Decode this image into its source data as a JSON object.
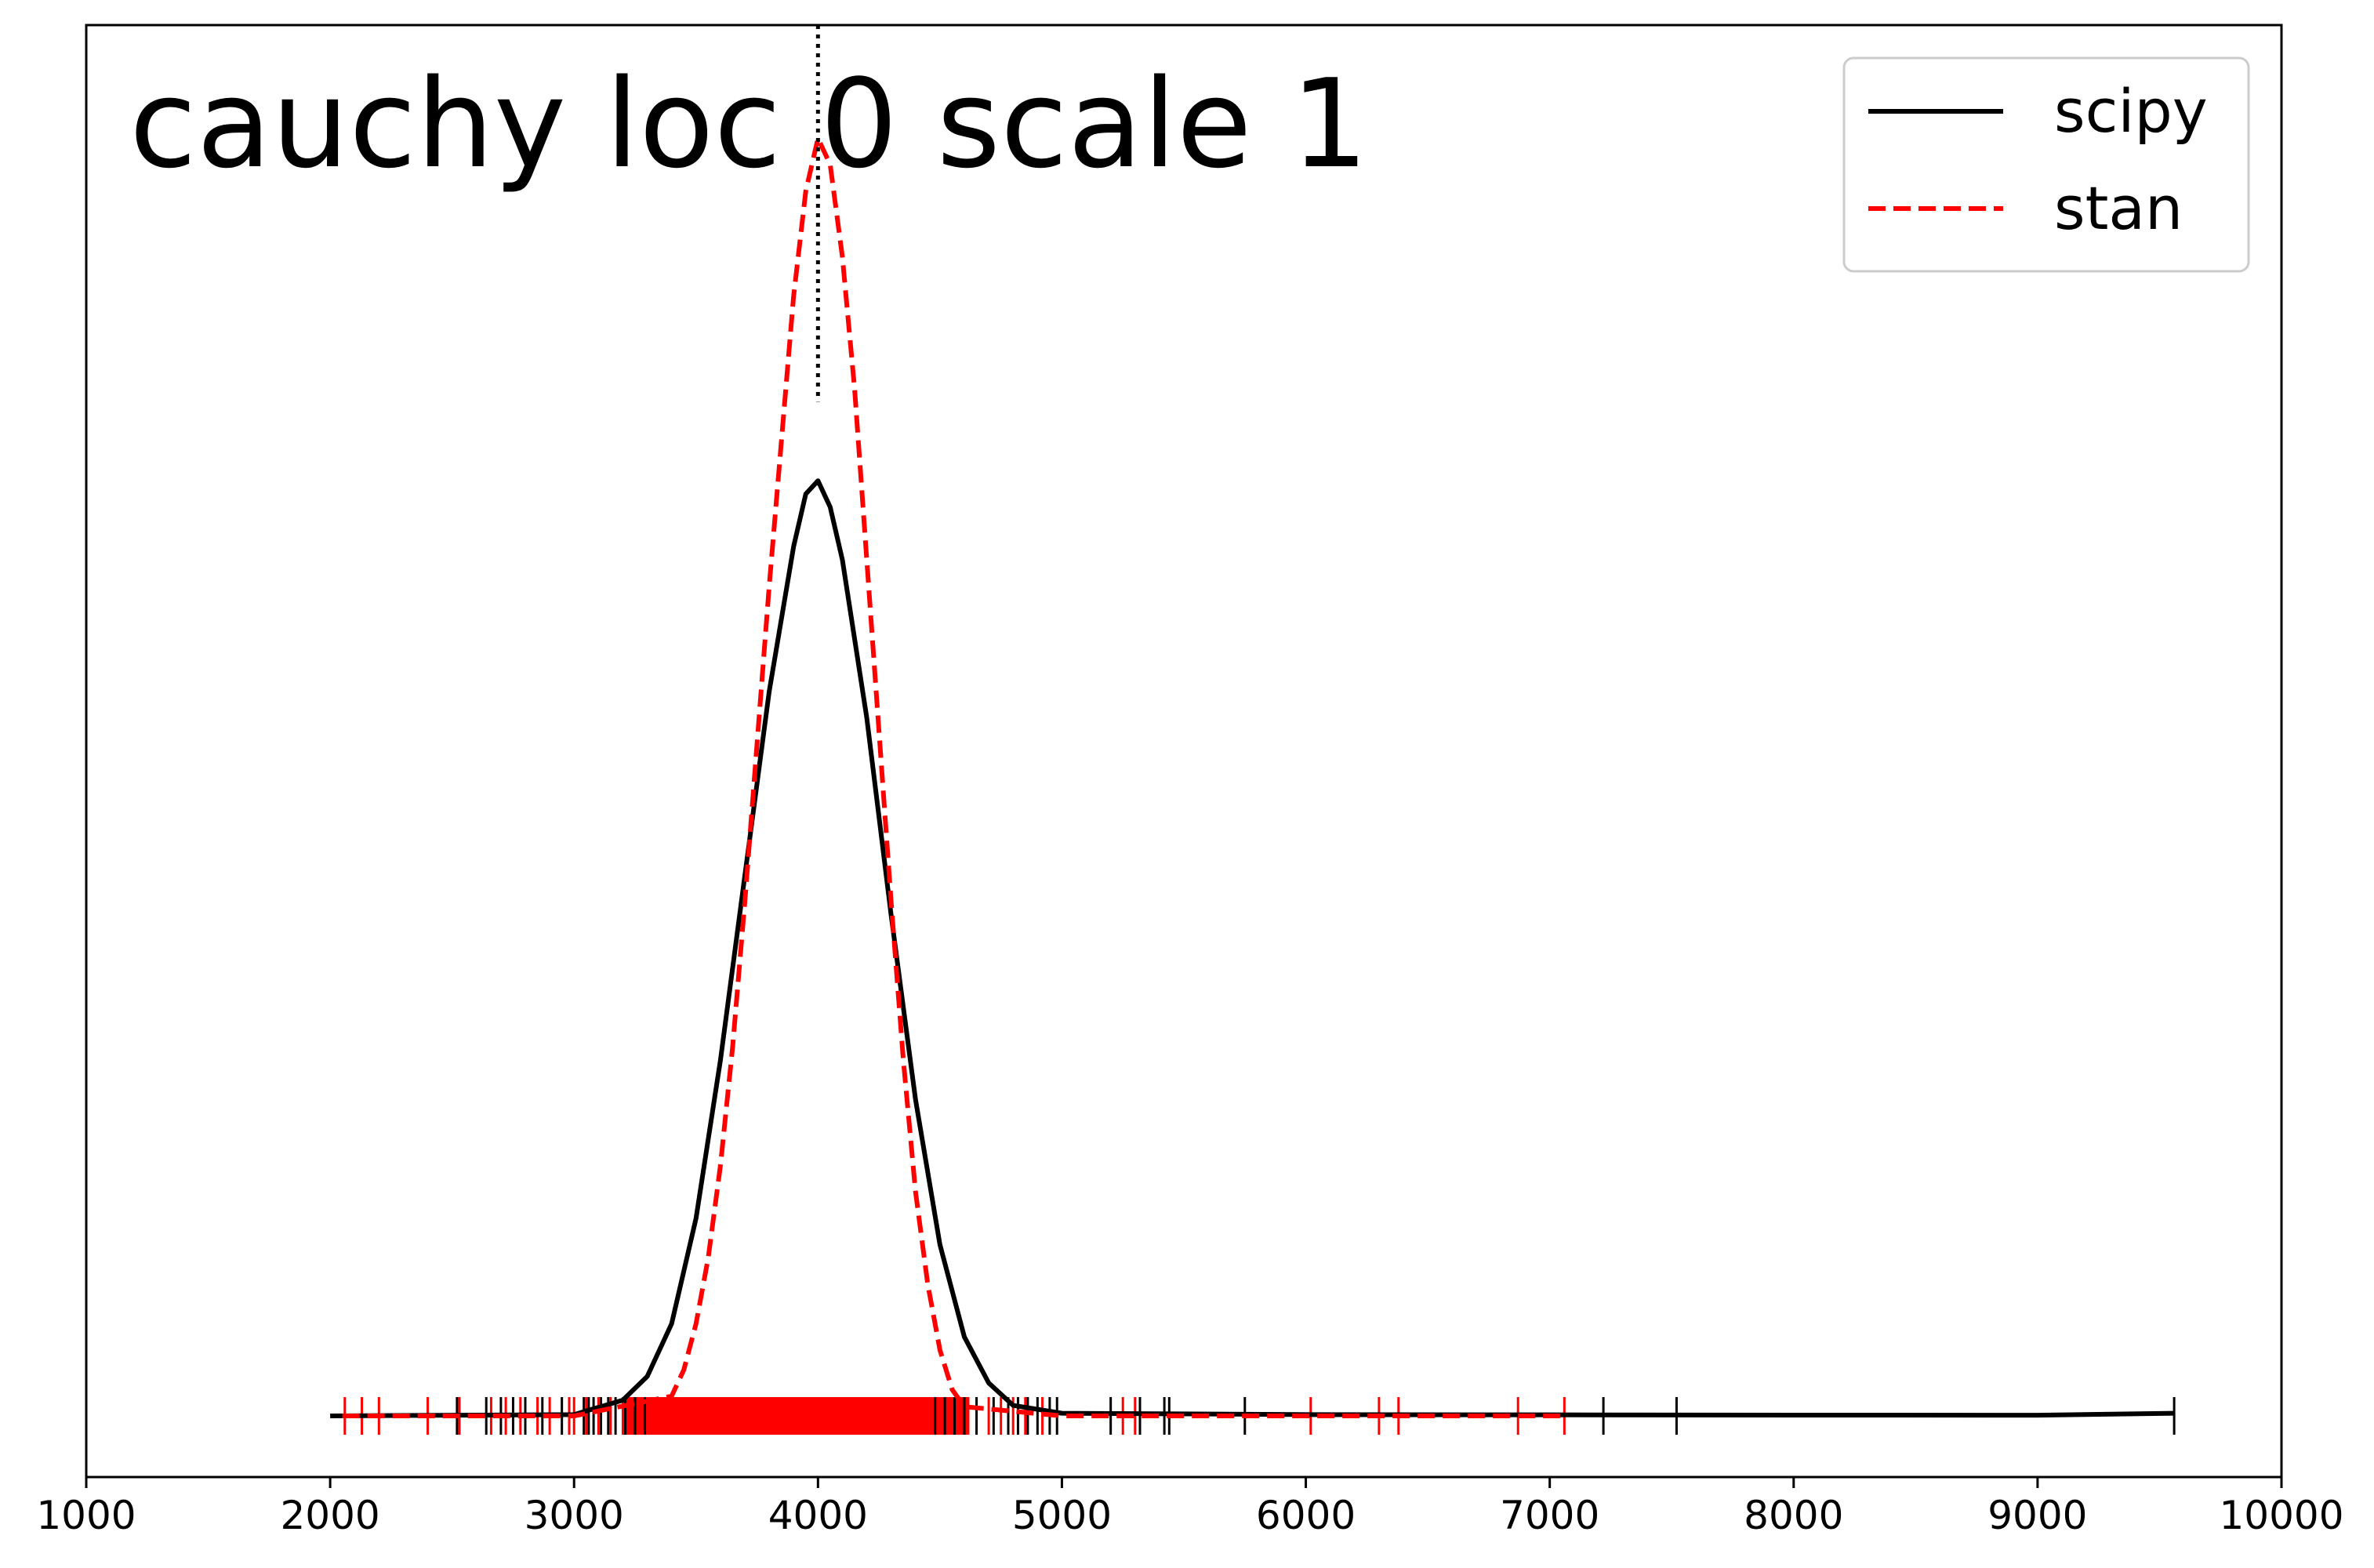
{
  "chart_data": {
    "type": "line",
    "title": "cauchy loc 0 scale 1",
    "xlabel": "",
    "ylabel": "",
    "xlim": [
      1000,
      10000
    ],
    "ylim": [
      0,
      1.07
    ],
    "x_ticks": [
      1000,
      2000,
      3000,
      4000,
      5000,
      6000,
      7000,
      8000,
      9000,
      10000
    ],
    "y_ticks_visible": false,
    "grid": false,
    "legend": {
      "placement": "top-right",
      "entries": [
        "scipy",
        "stan"
      ]
    },
    "reference_line": {
      "x": 4000,
      "y_top": 0.77,
      "style": "dotted",
      "color": "#000000"
    },
    "series": [
      {
        "name": "scipy",
        "color": "#000000",
        "style": "solid",
        "x": [
          2000,
          3000,
          3200,
          3300,
          3400,
          3500,
          3600,
          3700,
          3800,
          3900,
          3950,
          4000,
          4050,
          4100,
          4200,
          4300,
          4400,
          4500,
          4600,
          4700,
          4800,
          5000,
          6000,
          7000,
          8000,
          9000,
          9560
        ],
        "y": [
          0,
          0.001,
          0.012,
          0.03,
          0.07,
          0.15,
          0.27,
          0.41,
          0.55,
          0.66,
          0.7,
          0.71,
          0.69,
          0.65,
          0.53,
          0.38,
          0.24,
          0.13,
          0.06,
          0.025,
          0.008,
          0.002,
          0.001,
          0.0008,
          0.0006,
          0.0005,
          0.002
        ]
      },
      {
        "name": "stan",
        "color": "#ff0000",
        "style": "dashed",
        "x": [
          2050,
          3000,
          3400,
          3450,
          3500,
          3550,
          3600,
          3650,
          3700,
          3750,
          3800,
          3850,
          3900,
          3950,
          4000,
          4050,
          4100,
          4150,
          4200,
          4250,
          4300,
          4350,
          4400,
          4450,
          4500,
          4550,
          4600,
          5000,
          6000,
          7050
        ],
        "y": [
          0,
          0,
          0.015,
          0.035,
          0.07,
          0.12,
          0.19,
          0.28,
          0.39,
          0.51,
          0.63,
          0.74,
          0.85,
          0.93,
          0.97,
          0.95,
          0.88,
          0.78,
          0.65,
          0.52,
          0.39,
          0.27,
          0.17,
          0.1,
          0.05,
          0.02,
          0.007,
          0,
          0,
          0
        ]
      }
    ],
    "rug": {
      "scipy": {
        "color": "#000000",
        "x": [
          2520,
          2640,
          2700,
          2750,
          2800,
          2870,
          2950,
          3040,
          3060,
          3080,
          3110,
          3140,
          3170,
          3210,
          3250,
          3290,
          4480,
          4520,
          4560,
          4600,
          4650,
          4720,
          4780,
          4820,
          4860,
          4900,
          4950,
          4980,
          5200,
          5320,
          5420,
          5440,
          5750,
          7220,
          7520,
          9560
        ]
      },
      "stan": {
        "color": "#ff0000",
        "x": [
          2060,
          2130,
          2200,
          2400,
          2530,
          2660,
          2720,
          2780,
          2850,
          2900,
          2980,
          3000,
          3050,
          3100,
          3150,
          4700,
          4750,
          4800,
          4850,
          4920,
          5250,
          5300,
          6020,
          6300,
          6380,
          6870,
          7060
        ]
      },
      "stan_dense_range": [
        3200,
        4620
      ]
    }
  }
}
